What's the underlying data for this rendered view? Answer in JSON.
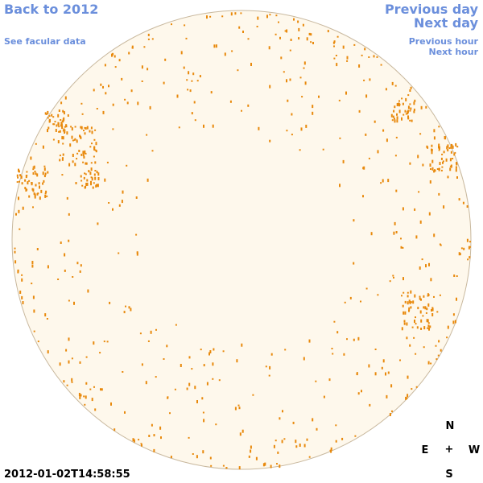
{
  "links": {
    "back": "Back to 2012",
    "facular": "See facular data",
    "previous_day": "Previous day",
    "next_day": "Next day",
    "previous_hour": "Previous hour",
    "next_hour": "Next hour"
  },
  "timestamp": "2012-01-02T14:58:55",
  "compass": {
    "north": "N",
    "east": "E",
    "center": "+",
    "west": "W",
    "south": "S"
  }
}
